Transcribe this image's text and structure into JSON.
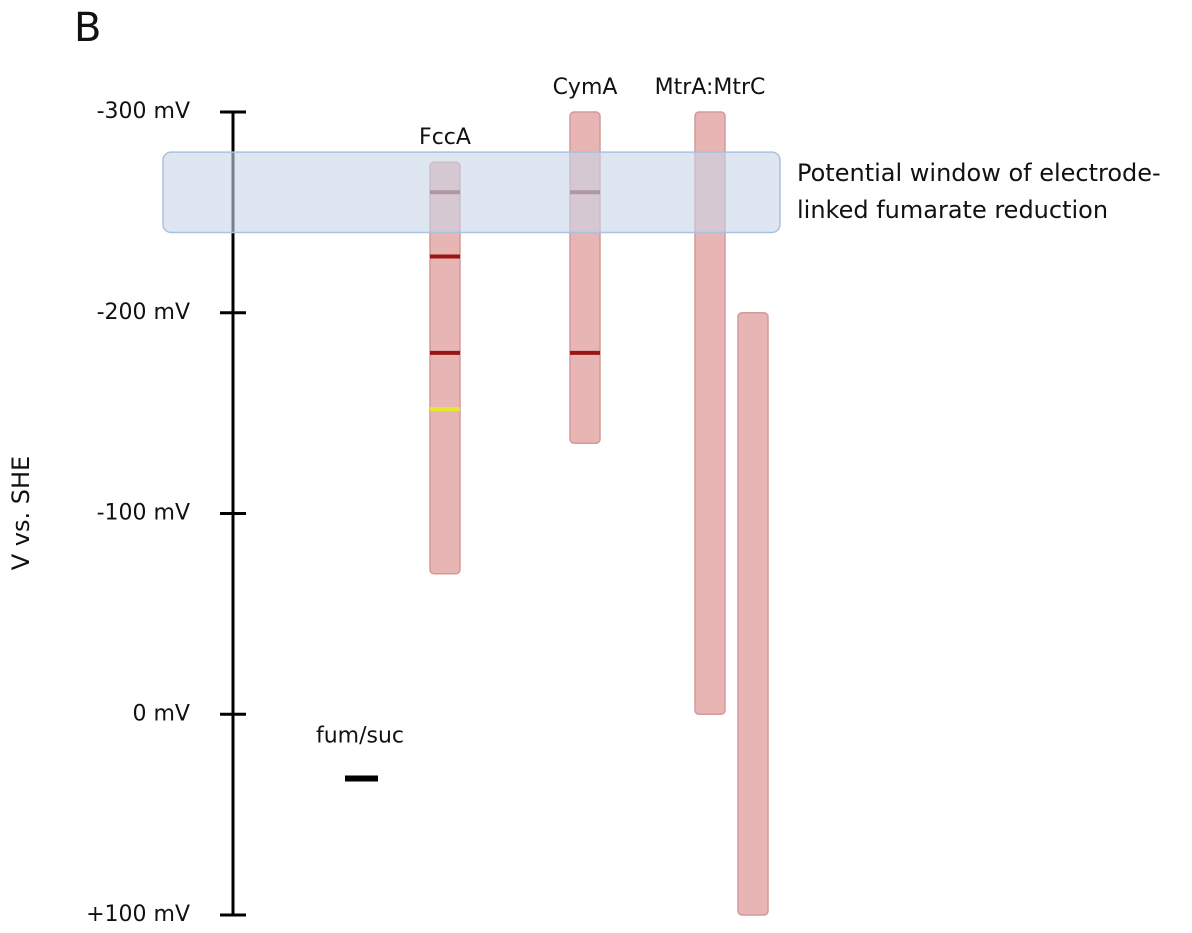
{
  "chart_data": {
    "type": "range",
    "panel_label": "B",
    "y_label": "V vs. SHE",
    "ylim": [
      -300,
      100
    ],
    "yticks": [
      {
        "value": -300,
        "label": "-300 mV"
      },
      {
        "value": -200,
        "label": "-200 mV"
      },
      {
        "value": -100,
        "label": "-100 mV"
      },
      {
        "value": 0,
        "label": "0 mV"
      },
      {
        "value": 100,
        "label": "+100 mV"
      }
    ],
    "bar_color": "#e8b5b5",
    "groups": [
      {
        "name": "FccA",
        "ranges": [
          [
            -275,
            -70
          ]
        ],
        "lines": [
          {
            "value": -260,
            "color": "#8e3a3a"
          },
          {
            "value": -228,
            "color": "#9a1414"
          },
          {
            "value": -180,
            "color": "#9a1414"
          },
          {
            "value": -152,
            "color": "#e4e82a"
          }
        ]
      },
      {
        "name": "CymA",
        "ranges": [
          [
            -300,
            -135
          ]
        ],
        "lines": [
          {
            "value": -260,
            "color": "#8e3a3a"
          },
          {
            "value": -180,
            "color": "#9a1414"
          }
        ]
      },
      {
        "name": "MtrA:MtrC",
        "ranges": [
          [
            -300,
            0
          ],
          [
            -200,
            100
          ]
        ],
        "lines": []
      }
    ],
    "window": {
      "label_lines": [
        "Potential window of electrode-",
        "linked fumarate reduction"
      ],
      "range": [
        -280,
        -240
      ],
      "color": "#c8d6e8"
    },
    "marker": {
      "label": "fum/suc",
      "value": 32
    }
  }
}
